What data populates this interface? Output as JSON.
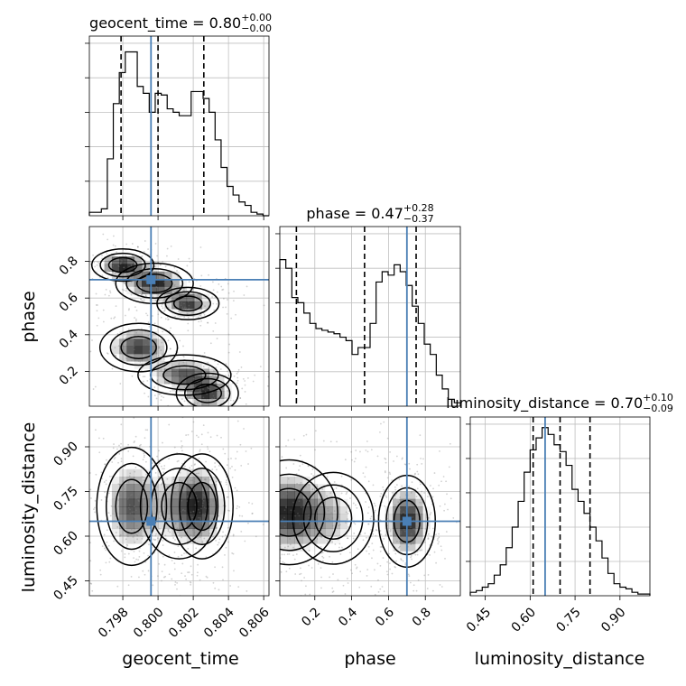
{
  "chart_data": {
    "type": "corner",
    "parameters": [
      "geocent_time",
      "phase",
      "luminosity_distance"
    ],
    "ranges": {
      "geocent_time": [
        0.7961,
        0.8063
      ],
      "phase": [
        0.01,
        0.99
      ],
      "luminosity_distance": [
        0.4,
        1.0
      ]
    },
    "ticks": {
      "geocent_time": [
        0.798,
        0.8,
        0.802,
        0.804,
        0.806
      ],
      "phase": [
        0.2,
        0.4,
        0.6,
        0.8
      ],
      "luminosity_distance": [
        0.45,
        0.6,
        0.75,
        0.9
      ]
    },
    "tick_labels": {
      "geocent_time": [
        "0.798",
        "0.800",
        "0.802",
        "0.804",
        "0.806"
      ],
      "phase": [
        "0.2",
        "0.4",
        "0.6",
        "0.8"
      ],
      "luminosity_distance": [
        "0.45",
        "0.60",
        "0.75",
        "0.90"
      ]
    },
    "truths": {
      "geocent_time": 0.7996,
      "phase": 0.7,
      "luminosity_distance": 0.65
    },
    "titles": {
      "geocent_time": {
        "name": "geocent_time",
        "median": "0.80",
        "plus": "+0.00",
        "minus": "−0.00"
      },
      "phase": {
        "name": "phase",
        "median": "0.47",
        "plus": "+0.28",
        "minus": "−0.37"
      },
      "luminosity_distance": {
        "name": "luminosity_distance",
        "median": "0.70",
        "plus": "+0.10",
        "minus": "−0.09"
      }
    },
    "quantiles": {
      "geocent_time": [
        0.7979,
        0.8,
        0.8026
      ],
      "phase": [
        0.1,
        0.47,
        0.75
      ],
      "luminosity_distance": [
        0.61,
        0.7,
        0.8
      ]
    },
    "histograms": {
      "geocent_time": [
        0.02,
        0.02,
        0.04,
        0.33,
        0.65,
        0.83,
        0.95,
        0.95,
        0.75,
        0.71,
        0.6,
        0.71,
        0.7,
        0.62,
        0.6,
        0.58,
        0.58,
        0.72,
        0.72,
        0.68,
        0.6,
        0.44,
        0.28,
        0.17,
        0.12,
        0.08,
        0.06,
        0.02,
        0.01,
        0.0
      ],
      "phase": [
        0.85,
        0.8,
        0.63,
        0.6,
        0.54,
        0.48,
        0.45,
        0.44,
        0.43,
        0.42,
        0.4,
        0.38,
        0.3,
        0.34,
        0.34,
        0.48,
        0.72,
        0.78,
        0.76,
        0.82,
        0.78,
        0.7,
        0.58,
        0.48,
        0.36,
        0.3,
        0.18,
        0.1,
        0.04,
        0.02
      ],
      "luminosity_distance": [
        0.02,
        0.03,
        0.05,
        0.07,
        0.12,
        0.18,
        0.28,
        0.4,
        0.55,
        0.72,
        0.85,
        0.92,
        0.98,
        0.94,
        0.88,
        0.84,
        0.76,
        0.62,
        0.55,
        0.48,
        0.4,
        0.32,
        0.22,
        0.13,
        0.07,
        0.05,
        0.04,
        0.02,
        0.01,
        0.01
      ]
    },
    "contour_modes": {
      "geocent_time-phase": [
        {
          "cx": 0.798,
          "cy": 0.78,
          "sx": 0.0008,
          "sy": 0.04,
          "w": 1.0
        },
        {
          "cx": 0.7998,
          "cy": 0.68,
          "sx": 0.001,
          "sy": 0.05,
          "w": 1.0
        },
        {
          "cx": 0.8017,
          "cy": 0.57,
          "sx": 0.0008,
          "sy": 0.04,
          "w": 0.9
        },
        {
          "cx": 0.7989,
          "cy": 0.33,
          "sx": 0.001,
          "sy": 0.06,
          "w": 0.9
        },
        {
          "cx": 0.8015,
          "cy": 0.18,
          "sx": 0.0012,
          "sy": 0.05,
          "w": 0.8
        },
        {
          "cx": 0.8028,
          "cy": 0.08,
          "sx": 0.0008,
          "sy": 0.05,
          "w": 0.9
        }
      ],
      "geocent_time-luminosity_distance": [
        {
          "cx": 0.7985,
          "cy": 0.7,
          "sx": 0.0009,
          "sy": 0.09,
          "w": 1.0
        },
        {
          "cx": 0.8012,
          "cy": 0.7,
          "sx": 0.001,
          "sy": 0.08,
          "w": 0.7
        },
        {
          "cx": 0.8025,
          "cy": 0.7,
          "sx": 0.0008,
          "sy": 0.08,
          "w": 0.9
        }
      ],
      "phase-luminosity_distance": [
        {
          "cx": 0.06,
          "cy": 0.68,
          "sx": 0.12,
          "sy": 0.08,
          "w": 1.0
        },
        {
          "cx": 0.3,
          "cy": 0.66,
          "sx": 0.1,
          "sy": 0.07,
          "w": 0.4
        },
        {
          "cx": 0.7,
          "cy": 0.65,
          "sx": 0.07,
          "sy": 0.07,
          "w": 1.0
        }
      ]
    },
    "colors": {
      "truth": "#4a7fb5",
      "line": "#000000",
      "grid": "#bfbfbf",
      "scatter": "#7f7f7f",
      "density": "#000000"
    },
    "grid": true
  }
}
